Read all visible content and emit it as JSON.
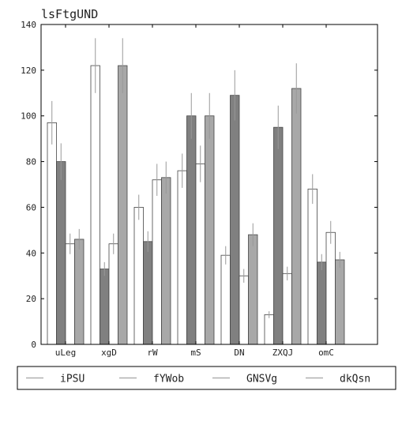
{
  "chart_data": {
    "type": "bar",
    "title": "lsFtgUND",
    "xlabel": "",
    "ylabel": "",
    "ylim": [
      0,
      140
    ],
    "yticks": [
      0,
      20,
      40,
      60,
      80,
      100,
      120,
      140
    ],
    "grid": false,
    "legend_position": "bottom",
    "categories": [
      "uLeg",
      "xgD",
      "rW",
      "mS",
      "DN",
      "ZXQJ",
      "omC"
    ],
    "series": [
      {
        "name": "iPSU",
        "color": "#ffffff",
        "values": [
          97,
          122,
          60,
          76,
          39,
          13,
          68
        ],
        "errors": [
          9.5,
          12,
          5.5,
          7.5,
          4,
          1.5,
          6.5
        ]
      },
      {
        "name": "fYWob",
        "color": "#808080",
        "values": [
          80,
          33,
          45,
          100,
          109,
          95,
          36
        ],
        "errors": [
          8,
          3,
          4.5,
          10,
          11,
          9.5,
          3.5
        ]
      },
      {
        "name": "GNSVg",
        "color": "#ffffff",
        "values": [
          44,
          44,
          72,
          79,
          30,
          31,
          49
        ],
        "errors": [
          4.5,
          4.5,
          7,
          8,
          3,
          3,
          5
        ]
      },
      {
        "name": "dkQsn",
        "color": "#a8a8a8",
        "values": [
          46,
          122,
          73,
          100,
          48,
          112,
          37
        ],
        "errors": [
          4.5,
          12,
          7,
          10,
          5,
          11,
          3.5
        ]
      }
    ],
    "legend_line_color": "#b0b0b0"
  }
}
